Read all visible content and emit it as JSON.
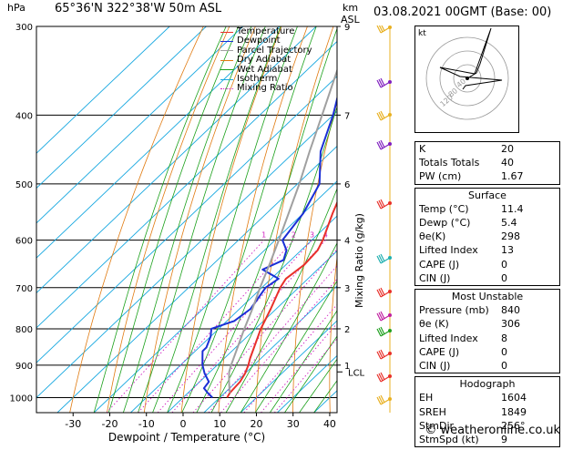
{
  "header": {
    "pressure_unit": "hPa",
    "location": "65°36'N  322°38'W  50m  ASL",
    "km_unit": "km",
    "asl": "ASL",
    "datetime": "03.08.2021  00GMT  (Base: 00)"
  },
  "legend": [
    {
      "label": "Temperature",
      "color": "#e8302a",
      "style": "solid"
    },
    {
      "label": "Dewpoint",
      "color": "#1a2fd6",
      "style": "solid"
    },
    {
      "label": "Parcel Trajectory",
      "color": "#a0a0a0",
      "style": "solid"
    },
    {
      "label": "Dry Adiabat",
      "color": "#e07a10",
      "style": "solid"
    },
    {
      "label": "Wet Adiabat",
      "color": "#1aa01a",
      "style": "solid"
    },
    {
      "label": "Isotherm",
      "color": "#18a8e0",
      "style": "solid"
    },
    {
      "label": "Mixing Ratio",
      "color": "#d020c0",
      "style": "dotted"
    }
  ],
  "chart_data": {
    "type": "line",
    "xlabel": "Dewpoint / Temperature (°C)",
    "ylabel": "Mixing Ratio (g/kg)",
    "x_ticks": [
      -30,
      -20,
      -10,
      0,
      10,
      20,
      30,
      40
    ],
    "y_ticks": [
      300,
      400,
      500,
      600,
      700,
      800,
      900,
      1000
    ],
    "y_unit": "hPa",
    "y_scale": "log",
    "xlim": [
      -40,
      42
    ],
    "ylim": [
      1050,
      300
    ],
    "km_ticks": [
      {
        "km": "9",
        "p": 300
      },
      {
        "km": "7",
        "p": 400
      },
      {
        "km": "6",
        "p": 500
      },
      {
        "km": "4",
        "p": 600
      },
      {
        "km": "3",
        "p": 700
      },
      {
        "km": "2",
        "p": 800
      },
      {
        "km": "1",
        "p": 900
      }
    ],
    "lcl_label": "LCL",
    "lcl_pressure": 920,
    "mixing_ratio_labels": [
      "1",
      "2",
      "3",
      "4",
      "6",
      "8",
      "10",
      "15",
      "20",
      "25"
    ],
    "mixing_ratio_values": [
      1,
      2,
      3,
      4,
      6,
      8,
      10,
      15,
      20,
      25
    ],
    "series": [
      {
        "name": "Temperature",
        "p": [
          1000,
          985,
          950,
          925,
          900,
          880,
          850,
          800,
          750,
          700,
          680,
          650,
          620,
          600,
          550,
          500,
          450,
          400,
          350,
          300
        ],
        "t": [
          12,
          11.4,
          11,
          10,
          8.5,
          7,
          5,
          1.5,
          -1.5,
          -5,
          -6,
          -5,
          -5.5,
          -7,
          -12,
          -17,
          -22.5,
          -29,
          -36,
          -44
        ]
      },
      {
        "name": "Dewpoint",
        "p": [
          1000,
          985,
          970,
          950,
          925,
          900,
          880,
          860,
          850,
          820,
          800,
          780,
          750,
          700,
          680,
          660,
          640,
          620,
          600,
          550,
          500,
          450,
          400,
          350,
          330,
          300
        ],
        "t": [
          8,
          5.4,
          3,
          2.5,
          -1,
          -4,
          -6,
          -8,
          -8,
          -10,
          -12,
          -8,
          -7,
          -9,
          -8,
          -15,
          -12,
          -14,
          -18,
          -20,
          -24,
          -33,
          -40,
          -49,
          -54,
          -52
        ]
      },
      {
        "name": "Parcel Trajectory",
        "p": [
          985,
          950,
          920,
          900,
          850,
          800,
          750,
          700,
          650,
          600,
          550,
          500,
          450,
          400,
          350,
          300
        ],
        "t": [
          11.4,
          8,
          5.2,
          3.8,
          0.5,
          -3,
          -6.5,
          -10.5,
          -14.5,
          -19,
          -24,
          -29.5,
          -36,
          -43,
          -51,
          -60
        ]
      }
    ]
  },
  "hodograph": {
    "unit_label": "kt",
    "ring_labels": [
      "40",
      "80",
      "120"
    ]
  },
  "indices": [
    {
      "label": "K",
      "value": "20"
    },
    {
      "label": "Totals Totals",
      "value": "40"
    },
    {
      "label": "PW (cm)",
      "value": "1.67"
    }
  ],
  "surface": {
    "title": "Surface",
    "rows": [
      {
        "label": "Temp (°C)",
        "value": "11.4"
      },
      {
        "label": "Dewp (°C)",
        "value": "5.4"
      },
      {
        "label": "θe(K)",
        "value": "298"
      },
      {
        "label": "Lifted Index",
        "value": "13"
      },
      {
        "label": "CAPE (J)",
        "value": "0"
      },
      {
        "label": "CIN (J)",
        "value": "0"
      }
    ]
  },
  "most_unstable": {
    "title": "Most Unstable",
    "rows": [
      {
        "label": "Pressure (mb)",
        "value": "840"
      },
      {
        "label": "θe (K)",
        "value": "306"
      },
      {
        "label": "Lifted Index",
        "value": "8"
      },
      {
        "label": "CAPE (J)",
        "value": "0"
      },
      {
        "label": "CIN (J)",
        "value": "0"
      }
    ]
  },
  "hodo_table": {
    "title": "Hodograph",
    "rows": [
      {
        "label": "EH",
        "value": "1604"
      },
      {
        "label": "SREH",
        "value": "1849"
      },
      {
        "label": "StmDir",
        "value": "256°"
      },
      {
        "label": "StmSpd (kt)",
        "value": "9"
      }
    ]
  },
  "footer": "© weatheronline.co.uk"
}
